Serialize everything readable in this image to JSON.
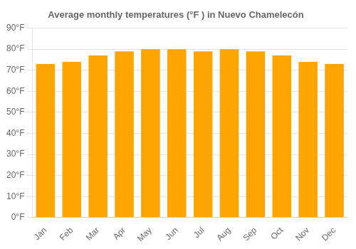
{
  "chart_data": {
    "type": "bar",
    "title": "Average monthly temperatures (°F ) in Nuevo Chamelecón",
    "categories": [
      "Jan",
      "Feb",
      "Mar",
      "Apr",
      "May",
      "Jun",
      "Jul",
      "Aug",
      "Sep",
      "Oct",
      "Nov",
      "Dec"
    ],
    "values": [
      73,
      74,
      77,
      79,
      80,
      80,
      79,
      80,
      79,
      77,
      74,
      73
    ],
    "color": "#FFA500",
    "ylim": [
      0,
      90
    ],
    "yticks": [
      {
        "value": 0,
        "label": "0°F"
      },
      {
        "value": 10,
        "label": "10°F"
      },
      {
        "value": 20,
        "label": "20°F"
      },
      {
        "value": 30,
        "label": "30°F"
      },
      {
        "value": 40,
        "label": "40°F"
      },
      {
        "value": 50,
        "label": "50°F"
      },
      {
        "value": 60,
        "label": "60°F"
      },
      {
        "value": 70,
        "label": "70°F"
      },
      {
        "value": 80,
        "label": "80°F"
      },
      {
        "value": 90,
        "label": "90°F"
      }
    ],
    "grid": true
  }
}
